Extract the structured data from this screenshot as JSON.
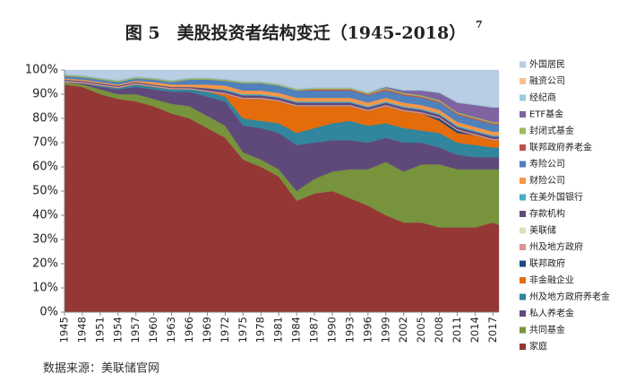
{
  "chart_data": {
    "type": "stacked_area",
    "title": "图 5　美股投资者结构变迁（1945-2018）",
    "title_note": "7",
    "source": "数据来源：美联储官网",
    "x": [
      1945,
      1948,
      1951,
      1954,
      1957,
      1960,
      1963,
      1966,
      1969,
      1972,
      1975,
      1978,
      1981,
      1984,
      1987,
      1990,
      1993,
      1996,
      1999,
      2002,
      2005,
      2008,
      2011,
      2014,
      2017,
      2018
    ],
    "xlim": [
      1945,
      2018
    ],
    "xticks": [
      1945,
      1948,
      1951,
      1954,
      1957,
      1960,
      1963,
      1966,
      1969,
      1972,
      1975,
      1978,
      1981,
      1984,
      1987,
      1990,
      1993,
      1996,
      1999,
      2002,
      2005,
      2008,
      2011,
      2014,
      2017
    ],
    "ylim": [
      0,
      100
    ],
    "yticks": [
      {
        "value": 0,
        "label": "0%"
      },
      {
        "value": 10,
        "label": "10%"
      },
      {
        "value": 20,
        "label": "20%"
      },
      {
        "value": 30,
        "label": "30%"
      },
      {
        "value": 40,
        "label": "40%"
      },
      {
        "value": 50,
        "label": "50%"
      },
      {
        "value": 60,
        "label": "60%"
      },
      {
        "value": 70,
        "label": "70%"
      },
      {
        "value": 80,
        "label": "80%"
      },
      {
        "value": 90,
        "label": "90%"
      },
      {
        "value": 100,
        "label": "100%"
      }
    ],
    "series": [
      {
        "name": "外国居民",
        "color": "#b9cde5",
        "values": [
          1.5,
          2,
          3,
          4,
          2.5,
          3,
          4,
          3,
          3,
          3.5,
          4.5,
          4.5,
          5.5,
          7.5,
          7,
          7,
          7,
          9,
          6.5,
          8,
          8,
          9,
          13,
          14,
          15,
          15
        ]
      },
      {
        "name": "融资公司",
        "color": "#fac090",
        "values": [
          0,
          0,
          0,
          0,
          0,
          0,
          0,
          0,
          0,
          0,
          0,
          0,
          0,
          0,
          0,
          0,
          0,
          0,
          0,
          0,
          0,
          0,
          0,
          0,
          0,
          0
        ]
      },
      {
        "name": "经纪商",
        "color": "#93cddd",
        "values": [
          0.5,
          0.5,
          0.5,
          0.5,
          0.5,
          0.5,
          0.5,
          0.5,
          0.5,
          0.5,
          0.5,
          0.5,
          0.5,
          0.5,
          0.5,
          0.5,
          0.5,
          0.5,
          0.5,
          0.5,
          0.5,
          0.5,
          0.5,
          0.5,
          0.5,
          0.5
        ]
      },
      {
        "name": "ETF基金",
        "color": "#8064a2",
        "values": [
          0,
          0,
          0,
          0,
          0,
          0,
          0,
          0,
          0,
          0,
          0,
          0,
          0,
          0,
          0,
          0,
          0,
          0,
          0.5,
          1,
          2,
          3,
          4,
          5,
          6,
          6
        ]
      },
      {
        "name": "封闭式基金",
        "color": "#9bbb59",
        "values": [
          0.5,
          0.5,
          0.5,
          0.5,
          0.5,
          0.5,
          0.5,
          0.5,
          0.5,
          0.5,
          0.5,
          0.5,
          0.5,
          0.5,
          0.5,
          0.5,
          0.5,
          0.5,
          0.5,
          0.5,
          0.5,
          0.5,
          0.5,
          0.5,
          0.5,
          0.5
        ]
      },
      {
        "name": "联邦政府养老金",
        "color": "#c0504d",
        "values": [
          0,
          0,
          0,
          0,
          0,
          0,
          0,
          0,
          0,
          0,
          0,
          0,
          0,
          0,
          0.5,
          0.5,
          0.5,
          0.5,
          0.5,
          0.5,
          0.5,
          0.5,
          0.5,
          0.5,
          0.5,
          0.5
        ]
      },
      {
        "name": "寿险公司",
        "color": "#4f81bd",
        "values": [
          1,
          1,
          1,
          1,
          1,
          1,
          1,
          2,
          2,
          2,
          3,
          3,
          3,
          3,
          3,
          3,
          3,
          3,
          3,
          3,
          3,
          3,
          3,
          3,
          3,
          3
        ]
      },
      {
        "name": "财险公司",
        "color": "#f79646",
        "values": [
          0.5,
          0.5,
          0.5,
          0.5,
          0.5,
          1,
          1,
          1,
          1.5,
          1.5,
          1.5,
          1.5,
          1.5,
          1.5,
          1.5,
          1.5,
          1.5,
          1.5,
          1.5,
          1.5,
          1.5,
          1.5,
          1.5,
          1.5,
          1.5,
          1.5
        ]
      },
      {
        "name": "在美外国银行",
        "color": "#4bacc6",
        "values": [
          0,
          0,
          0,
          0,
          0,
          0,
          0,
          0,
          0,
          0.5,
          0.5,
          0.5,
          0.5,
          0.5,
          0.5,
          0.5,
          0.5,
          0.5,
          0.5,
          0.5,
          0.5,
          0.5,
          0.5,
          0.5,
          0.5,
          0.5
        ]
      },
      {
        "name": "存款机构",
        "color": "#604a7b",
        "values": [
          0.5,
          0.5,
          0.5,
          0.5,
          0.5,
          0.5,
          0.5,
          0.5,
          1,
          1,
          1,
          1,
          1,
          1,
          1,
          1,
          1,
          1,
          1,
          1,
          1,
          1,
          1,
          1,
          1,
          1
        ]
      },
      {
        "name": "美联储",
        "color": "#d7e4bd",
        "values": [
          0,
          0,
          0,
          0,
          0,
          0,
          0,
          0,
          0,
          0,
          0,
          0,
          0,
          0,
          0,
          0,
          0,
          0,
          0,
          0,
          0,
          0,
          0,
          0,
          0,
          0
        ]
      },
      {
        "name": "州及地方政府",
        "color": "#d99694",
        "values": [
          0.5,
          0.5,
          0.5,
          0.5,
          0.5,
          0.5,
          0.5,
          0.5,
          0.5,
          0.5,
          0.5,
          0.5,
          0.5,
          0.5,
          0.5,
          0.5,
          0.5,
          0.5,
          0.5,
          0.5,
          0.5,
          0.5,
          0.5,
          0.5,
          0.5,
          0.5
        ]
      },
      {
        "name": "联邦政府",
        "color": "#1f497d",
        "values": [
          0,
          0,
          0,
          0,
          0,
          0,
          0,
          0,
          0,
          0,
          0,
          0,
          0,
          0,
          0,
          0,
          0,
          0,
          0,
          0,
          0,
          1,
          1,
          0,
          0,
          0
        ]
      },
      {
        "name": "非金融企业",
        "color": "#e46c0a",
        "values": [
          0,
          0,
          0,
          0,
          0,
          0,
          0,
          0,
          0,
          1,
          8,
          9,
          9,
          11,
          9,
          7,
          6,
          6,
          7,
          7,
          7,
          5,
          4,
          4,
          3,
          3
        ]
      },
      {
        "name": "州及地方政府养老金",
        "color": "#31859c",
        "values": [
          0,
          0,
          0.5,
          0.5,
          1,
          1,
          1,
          1,
          2,
          2,
          3,
          3,
          4,
          5,
          6,
          7,
          8,
          7,
          6,
          6,
          5,
          6,
          5,
          5,
          4,
          4
        ]
      },
      {
        "name": "私人养老金",
        "color": "#5f497a",
        "values": [
          0,
          0.5,
          1,
          2,
          3,
          4,
          5,
          6,
          8,
          10,
          11,
          13,
          15,
          19,
          15,
          13,
          12,
          11,
          10,
          12,
          9,
          7,
          6,
          5,
          5,
          5
        ]
      },
      {
        "name": "共同基金",
        "color": "#77933c",
        "values": [
          1,
          1,
          2,
          2,
          3,
          3,
          4,
          5,
          5,
          5,
          3,
          3,
          3,
          4,
          6,
          8,
          12,
          15,
          22,
          21,
          24,
          26,
          24,
          24,
          22,
          23
        ]
      },
      {
        "name": "家庭",
        "color": "#953735",
        "values": [
          94,
          93,
          90,
          88,
          87,
          85,
          82,
          80,
          76,
          72,
          63,
          60,
          56,
          46,
          49,
          50,
          47,
          44,
          40,
          37,
          37,
          35,
          35,
          35,
          37,
          36
        ]
      }
    ]
  }
}
